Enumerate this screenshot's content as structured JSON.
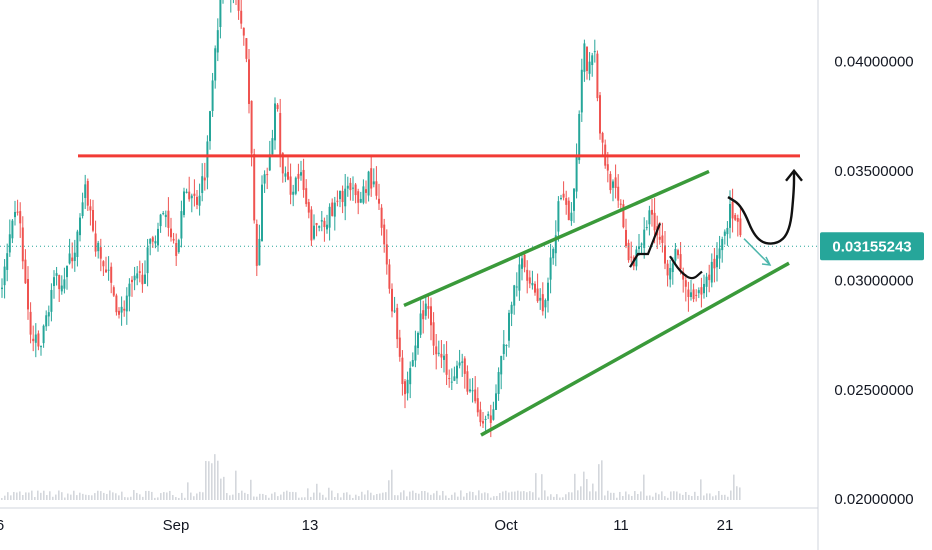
{
  "chart_data": {
    "type": "candlestick",
    "x_ticks": [
      "6",
      "Sep",
      "13",
      "Oct",
      "11",
      "21"
    ],
    "y_ticks": [
      "0.02000000",
      "0.02500000",
      "0.03000000",
      "0.03500000",
      "0.04000000"
    ],
    "ylim": [
      0.0196,
      0.0428
    ],
    "current_price": "0.03155243",
    "colors": {
      "up": "#26a69a",
      "down": "#ef5350",
      "volume": "#c9cdd3",
      "resistance": "#f23b35",
      "channel": "#3a9a3a",
      "projection": "#111111",
      "price_badge": "#26a69a",
      "price_line": "#26a69a",
      "axis": "#d1d4dc"
    },
    "path_points": [
      [
        0,
        0.0292
      ],
      [
        10,
        0.0318
      ],
      [
        18,
        0.0334
      ],
      [
        30,
        0.0275
      ],
      [
        40,
        0.0268
      ],
      [
        52,
        0.0297
      ],
      [
        64,
        0.0302
      ],
      [
        76,
        0.0316
      ],
      [
        86,
        0.0342
      ],
      [
        96,
        0.0315
      ],
      [
        108,
        0.0302
      ],
      [
        120,
        0.0284
      ],
      [
        130,
        0.0296
      ],
      [
        142,
        0.0302
      ],
      [
        152,
        0.0318
      ],
      [
        165,
        0.0332
      ],
      [
        176,
        0.0315
      ],
      [
        186,
        0.0342
      ],
      [
        196,
        0.0336
      ],
      [
        206,
        0.0352
      ],
      [
        214,
        0.0405
      ],
      [
        222,
        0.0432
      ],
      [
        230,
        0.0436
      ],
      [
        238,
        0.0425
      ],
      [
        244,
        0.0408
      ],
      [
        250,
        0.038
      ],
      [
        256,
        0.03
      ],
      [
        262,
        0.034
      ],
      [
        270,
        0.0355
      ],
      [
        276,
        0.0385
      ],
      [
        282,
        0.0348
      ],
      [
        290,
        0.0342
      ],
      [
        300,
        0.0348
      ],
      [
        312,
        0.032
      ],
      [
        322,
        0.0328
      ],
      [
        332,
        0.033
      ],
      [
        345,
        0.0342
      ],
      [
        358,
        0.0336
      ],
      [
        370,
        0.0348
      ],
      [
        380,
        0.033
      ],
      [
        388,
        0.03
      ],
      [
        396,
        0.028
      ],
      [
        404,
        0.025
      ],
      [
        412,
        0.0262
      ],
      [
        420,
        0.0282
      ],
      [
        428,
        0.0288
      ],
      [
        436,
        0.0268
      ],
      [
        444,
        0.0262
      ],
      [
        452,
        0.0258
      ],
      [
        460,
        0.0262
      ],
      [
        468,
        0.0252
      ],
      [
        476,
        0.0242
      ],
      [
        484,
        0.0232
      ],
      [
        490,
        0.0236
      ],
      [
        498,
        0.0258
      ],
      [
        506,
        0.0272
      ],
      [
        514,
        0.0295
      ],
      [
        522,
        0.0308
      ],
      [
        530,
        0.0302
      ],
      [
        538,
        0.0292
      ],
      [
        546,
        0.0288
      ],
      [
        552,
        0.0312
      ],
      [
        560,
        0.0338
      ],
      [
        568,
        0.0328
      ],
      [
        574,
        0.034
      ],
      [
        580,
        0.0385
      ],
      [
        584,
        0.0412
      ],
      [
        588,
        0.0395
      ],
      [
        594,
        0.041
      ],
      [
        600,
        0.0368
      ],
      [
        606,
        0.0352
      ],
      [
        614,
        0.034
      ],
      [
        622,
        0.033
      ],
      [
        630,
        0.0305
      ],
      [
        636,
        0.0312
      ],
      [
        644,
        0.0325
      ],
      [
        652,
        0.033
      ],
      [
        660,
        0.032
      ],
      [
        668,
        0.0306
      ],
      [
        676,
        0.0312
      ],
      [
        684,
        0.0298
      ],
      [
        692,
        0.029
      ],
      [
        700,
        0.0292
      ],
      [
        708,
        0.0302
      ],
      [
        716,
        0.031
      ],
      [
        724,
        0.0322
      ],
      [
        730,
        0.0332
      ],
      [
        736,
        0.0326
      ],
      [
        741,
        0.0316
      ]
    ],
    "resistance_line": {
      "x1": 78,
      "x2": 800,
      "y": 0.03568
    },
    "channel_upper": {
      "x1": 404,
      "y1": 0.02885,
      "x2": 709,
      "y2": 0.03497
    },
    "channel_lower": {
      "x1": 481,
      "y1": 0.02293,
      "x2": 789,
      "y2": 0.03078
    },
    "projection_path": [
      [
        728,
        0.0338
      ],
      [
        742,
        0.0334
      ],
      [
        756,
        0.0318
      ],
      [
        776,
        0.0316
      ],
      [
        790,
        0.0322
      ],
      [
        794,
        0.0341
      ],
      [
        794,
        0.035
      ]
    ],
    "small_zigzag": [
      [
        630,
        0.0306
      ],
      [
        638,
        0.0312
      ],
      [
        648,
        0.0312
      ],
      [
        660,
        0.0326
      ]
    ],
    "dip_curve": [
      [
        670,
        0.0311
      ],
      [
        680,
        0.0304
      ],
      [
        692,
        0.03
      ],
      [
        702,
        0.0304
      ]
    ],
    "teal_arrow": [
      [
        744,
        0.0319
      ],
      [
        770,
        0.0307
      ]
    ]
  }
}
